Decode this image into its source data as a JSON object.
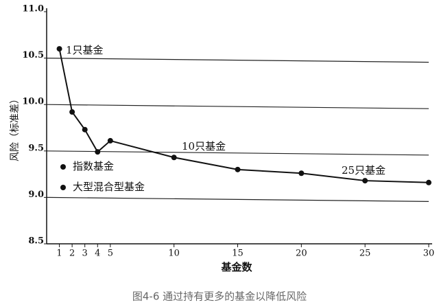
{
  "chart_data": {
    "type": "line",
    "x_label": "基金数",
    "y_label": "风险（标准差）",
    "caption": "图4-6 通过持有更多的基金以降低风险",
    "x": [
      1,
      2,
      3,
      4,
      5,
      10,
      15,
      20,
      25,
      30
    ],
    "series": [
      {
        "color": "#111111",
        "values": [
          10.6,
          9.92,
          9.73,
          9.49,
          9.61,
          9.43,
          9.3,
          9.26,
          9.18,
          9.16
        ]
      }
    ],
    "annotations": [
      "1只基金",
      "10只基金",
      "25只基金"
    ],
    "notes": [
      "指数基金",
      "大型混合型基金"
    ],
    "xlim": [
      0,
      30
    ],
    "xticks": [
      1,
      2,
      3,
      4,
      5,
      10,
      15,
      20,
      25,
      30
    ],
    "ylim": [
      8.5,
      11.0
    ],
    "yticks": [
      {
        "value": 8.5,
        "label": "8.5"
      },
      {
        "value": 9.0,
        "label": "9.0"
      },
      9.5,
      {
        "value": 10.0,
        "label": "10.0"
      },
      {
        "value": 10.5,
        "label": "10.5"
      },
      {
        "value": 11.0,
        "label": "11.0"
      }
    ],
    "grid": true
  }
}
